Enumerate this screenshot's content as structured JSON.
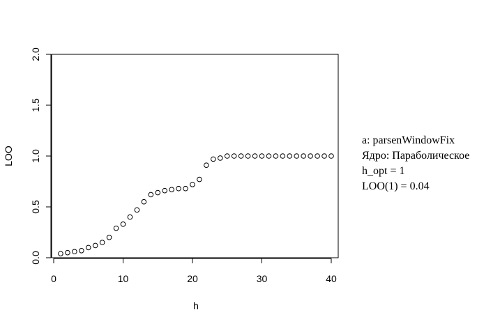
{
  "chart_data": {
    "type": "scatter",
    "title": "",
    "xlabel": "h",
    "ylabel": "LOO",
    "xlim": [
      0,
      40
    ],
    "ylim": [
      0,
      2
    ],
    "xticks": [
      0,
      10,
      20,
      30,
      40
    ],
    "xtick_labels": [
      "0",
      "10",
      "20",
      "30",
      "40"
    ],
    "yticks": [
      0,
      0.5,
      1,
      1.5,
      2
    ],
    "ytick_labels": [
      "0.0",
      "0.5",
      "1.0",
      "1.5",
      "2.0"
    ],
    "grid": false,
    "legend_placement": "right",
    "series": [
      {
        "marker": "open-circle",
        "x": [
          1,
          2,
          3,
          4,
          5,
          6,
          7,
          8,
          9,
          10,
          11,
          12,
          13,
          14,
          15,
          16,
          17,
          18,
          19,
          20,
          21,
          22,
          23,
          24,
          25,
          26,
          27,
          28,
          29,
          30,
          31,
          32,
          33,
          34,
          35,
          36,
          37,
          38,
          39,
          40
        ],
        "y": [
          0.04,
          0.05,
          0.06,
          0.07,
          0.1,
          0.12,
          0.15,
          0.2,
          0.29,
          0.33,
          0.4,
          0.47,
          0.55,
          0.62,
          0.64,
          0.66,
          0.67,
          0.68,
          0.68,
          0.72,
          0.77,
          0.91,
          0.97,
          0.98,
          1.0,
          1.0,
          1.0,
          1.0,
          1.0,
          1.0,
          1.0,
          1.0,
          1.0,
          1.0,
          1.0,
          1.0,
          1.0,
          1.0,
          1.0,
          1.0
        ]
      }
    ],
    "annotations": [
      "a: parsenWindowFix",
      "Ядро: Параболическое",
      "h_opt = 1",
      "LOO(1) = 0.04"
    ]
  },
  "colors": {
    "background": "#ffffff",
    "foreground": "#000000"
  }
}
